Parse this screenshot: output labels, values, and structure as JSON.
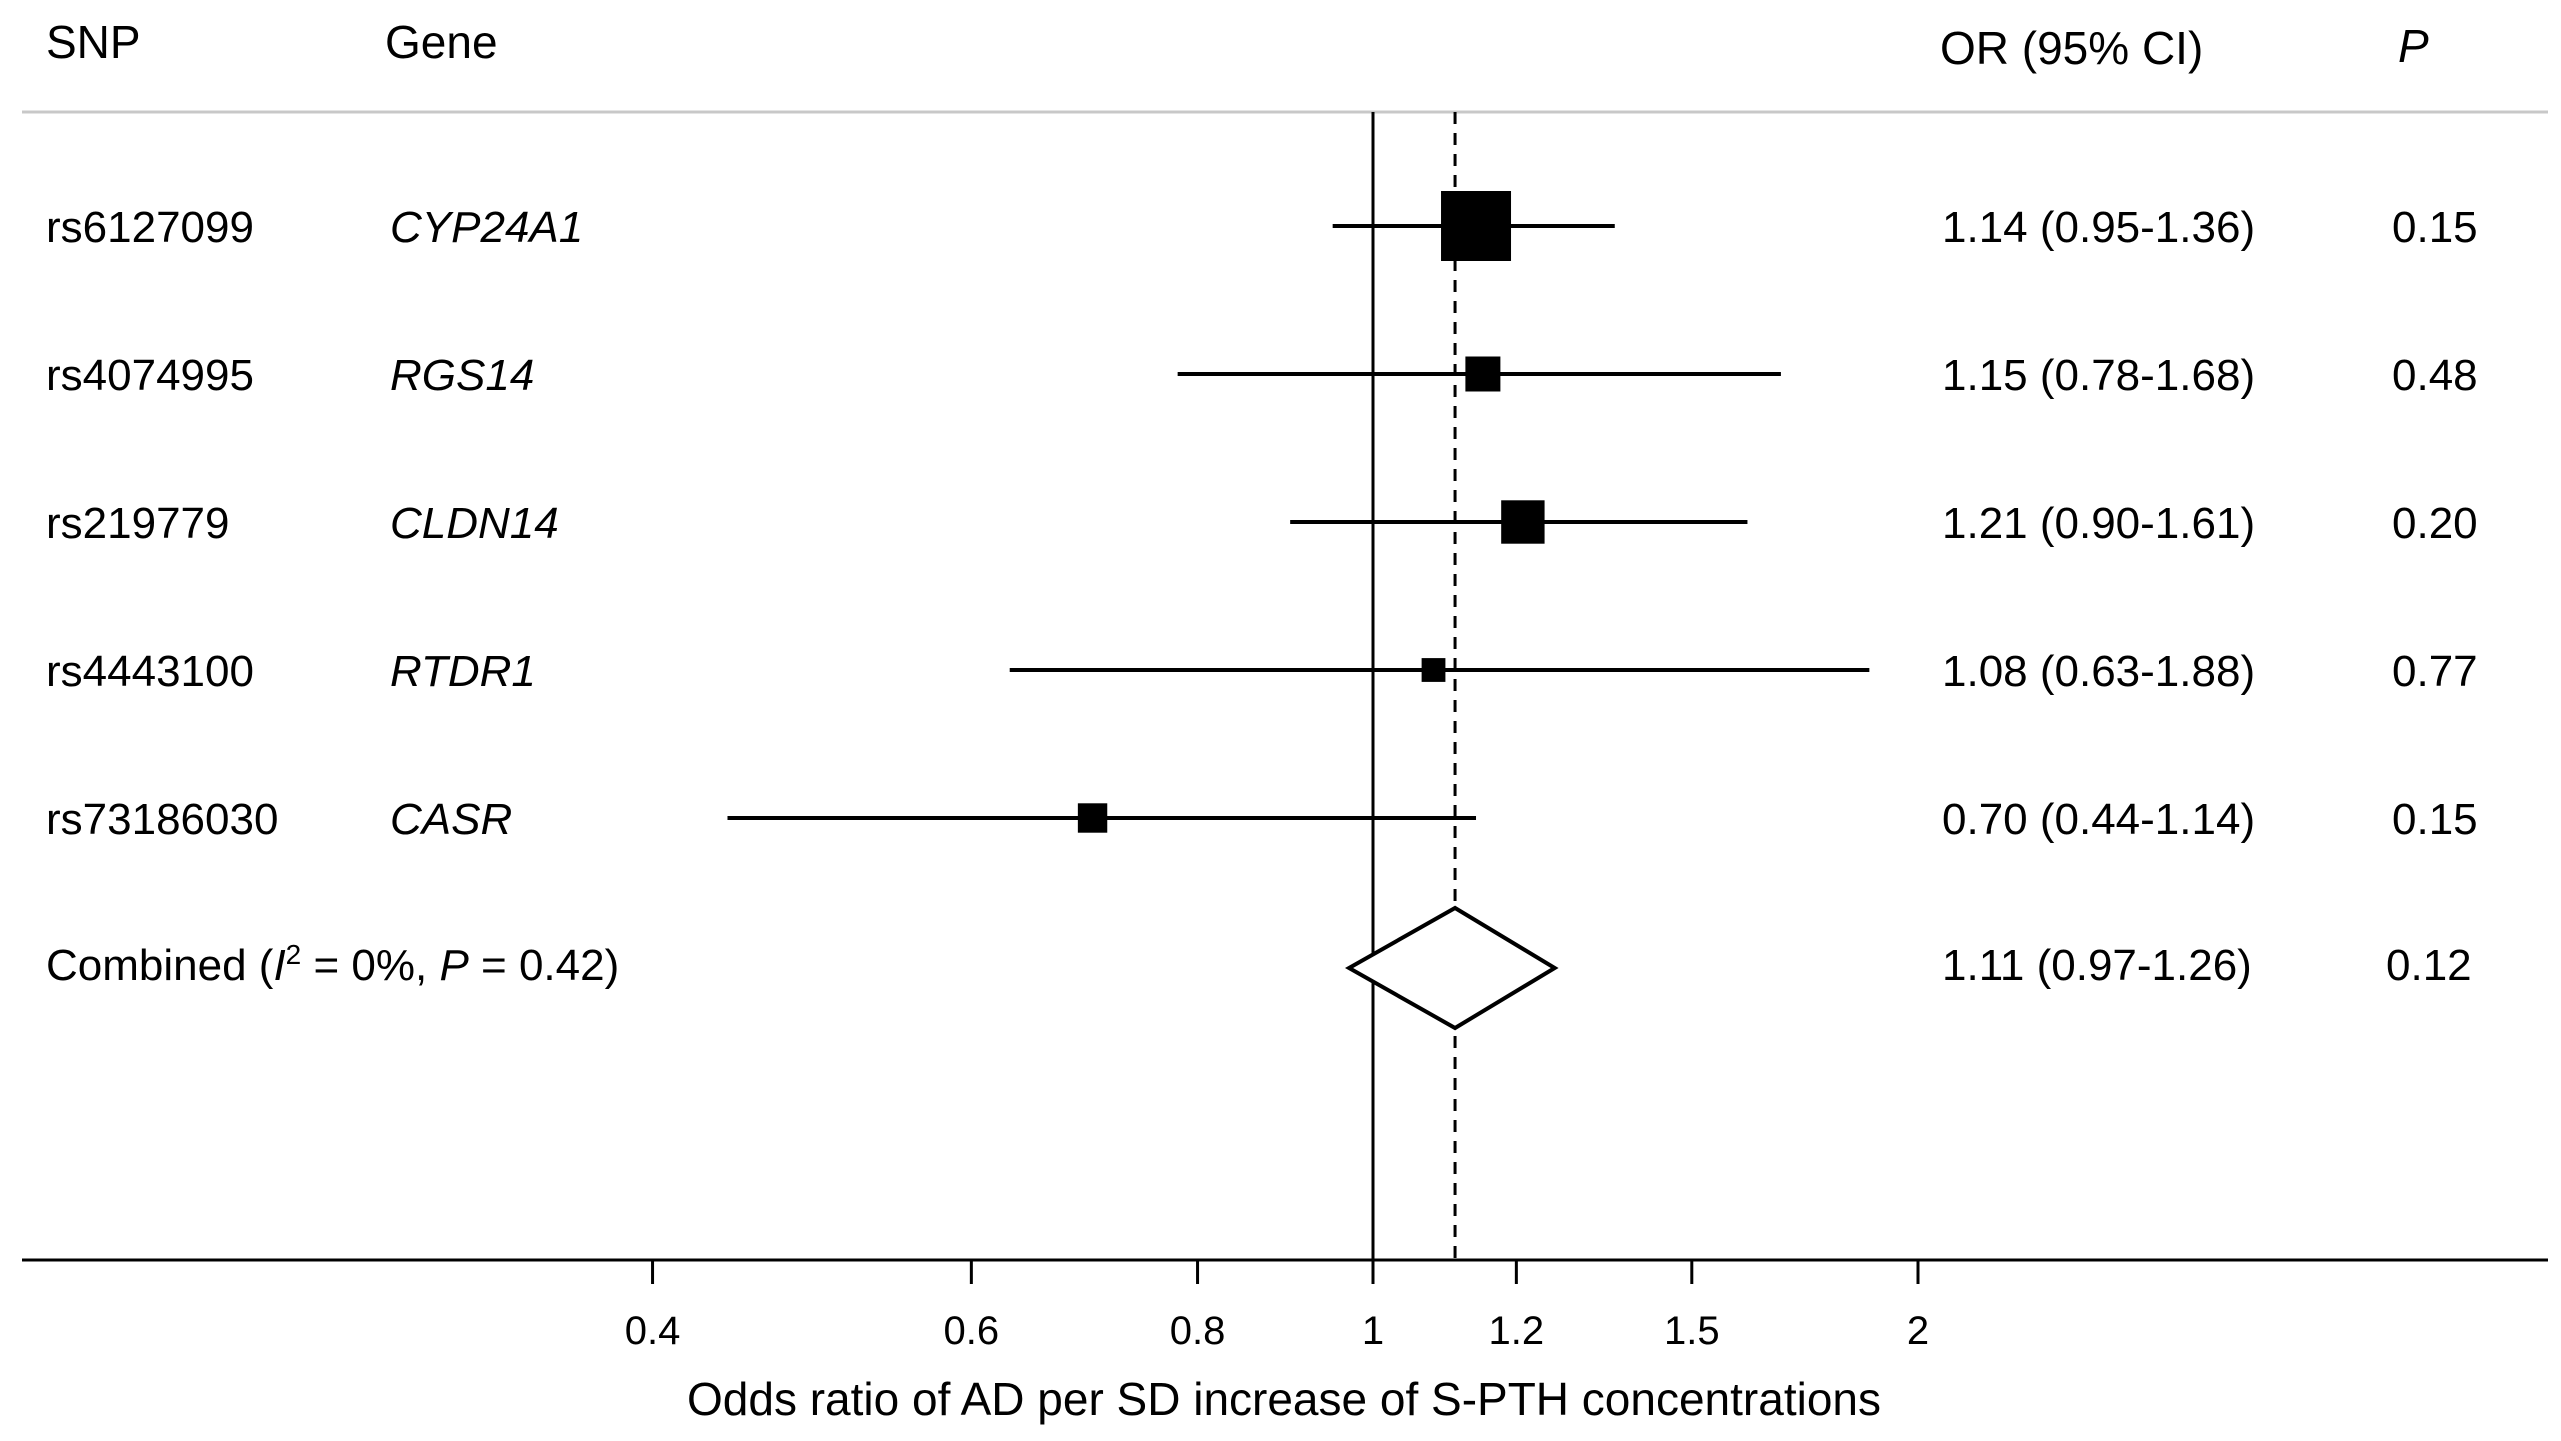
{
  "chart_data": {
    "type": "forest",
    "xscale": "log",
    "xlabel": "Odds ratio of AD per SD increase of S-PTH concentrations",
    "xticks": [
      0.4,
      0.6,
      0.8,
      1,
      1.2,
      1.5,
      2
    ],
    "xtick_labels": [
      "0.4",
      "0.6",
      "0.8",
      "1",
      "1.2",
      "1.5",
      "2"
    ],
    "null_value": 1,
    "pooled_reference_value": 1.11,
    "headers": {
      "snp": "SNP",
      "gene": "Gene",
      "or": "OR (95% CI)",
      "p": "P"
    },
    "studies": [
      {
        "snp": "rs6127099",
        "gene": "CYP24A1",
        "or": 1.14,
        "lo": 0.95,
        "hi": 1.36,
        "or_text": "1.14 (0.95-1.36)",
        "p": "0.15",
        "weight": 1.0
      },
      {
        "snp": "rs4074995",
        "gene": "RGS14",
        "or": 1.15,
        "lo": 0.78,
        "hi": 1.68,
        "or_text": "1.15 (0.78-1.68)",
        "p": "0.48",
        "weight": 0.5
      },
      {
        "snp": "rs219779",
        "gene": "CLDN14",
        "or": 1.21,
        "lo": 0.9,
        "hi": 1.61,
        "or_text": "1.21 (0.90-1.61)",
        "p": "0.20",
        "weight": 0.62
      },
      {
        "snp": "rs4443100",
        "gene": "RTDR1",
        "or": 1.08,
        "lo": 0.63,
        "hi": 1.88,
        "or_text": "1.08 (0.63-1.88)",
        "p": "0.77",
        "weight": 0.34
      },
      {
        "snp": "rs73186030",
        "gene": "CASR",
        "or": 0.7,
        "lo": 0.44,
        "hi": 1.14,
        "or_text": "0.70 (0.44-1.14)",
        "p": "0.15",
        "weight": 0.42
      }
    ],
    "combined": {
      "label_prefix": "Combined (",
      "i2_symbol": "I",
      "i2_sup": "2",
      "i2_value": " = 0%, ",
      "p_symbol": "P",
      "p_value": " = 0.42)",
      "or": 1.11,
      "lo": 0.97,
      "hi": 1.26,
      "or_text": "1.11 (0.97-1.26)",
      "p": "0.12"
    }
  }
}
